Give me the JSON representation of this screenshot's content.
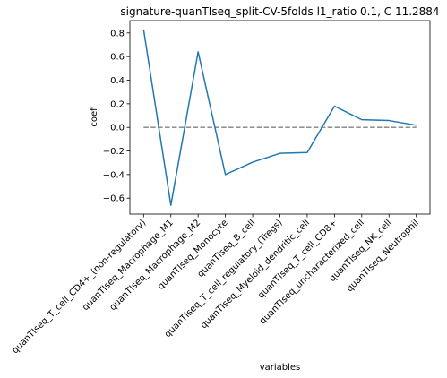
{
  "chart_data": {
    "type": "line",
    "title": "signature-quanTIseq_split-CV-5folds l1_ratio 0.1, C 11.2884",
    "xlabel": "variables",
    "ylabel": "coef",
    "categories": [
      "quanTIseq_T_cell_CD4+_(non-regulatory)",
      "quanTIseq_Macrophage_M1",
      "quanTIseq_Macrophage_M2",
      "quanTIseq_Monocyte",
      "quanTIseq_B_cell",
      "quanTIseq_T_cell_regulatory_(Tregs)",
      "quanTIseq_Myeloid_dendritic_cell",
      "quanTIseq_T_cell_CD8+",
      "quanTIseq_uncharacterized_cell",
      "quanTIseq_NK_cell",
      "quanTIseq_Neutrophil"
    ],
    "series": [
      {
        "values": [
          0.83,
          -0.66,
          0.64,
          -0.4,
          -0.295,
          -0.22,
          -0.213,
          0.18,
          0.065,
          0.058,
          0.018
        ],
        "color": "#1f77b4"
      }
    ],
    "reference_line": {
      "y": 0,
      "style": "dashed",
      "color": "#808080"
    },
    "yticks": [
      "−0.6",
      "−0.4",
      "−0.2",
      "0.0",
      "0.2",
      "0.4",
      "0.6",
      "0.8"
    ],
    "ylim": [
      -0.735,
      0.905
    ],
    "grid": false
  }
}
